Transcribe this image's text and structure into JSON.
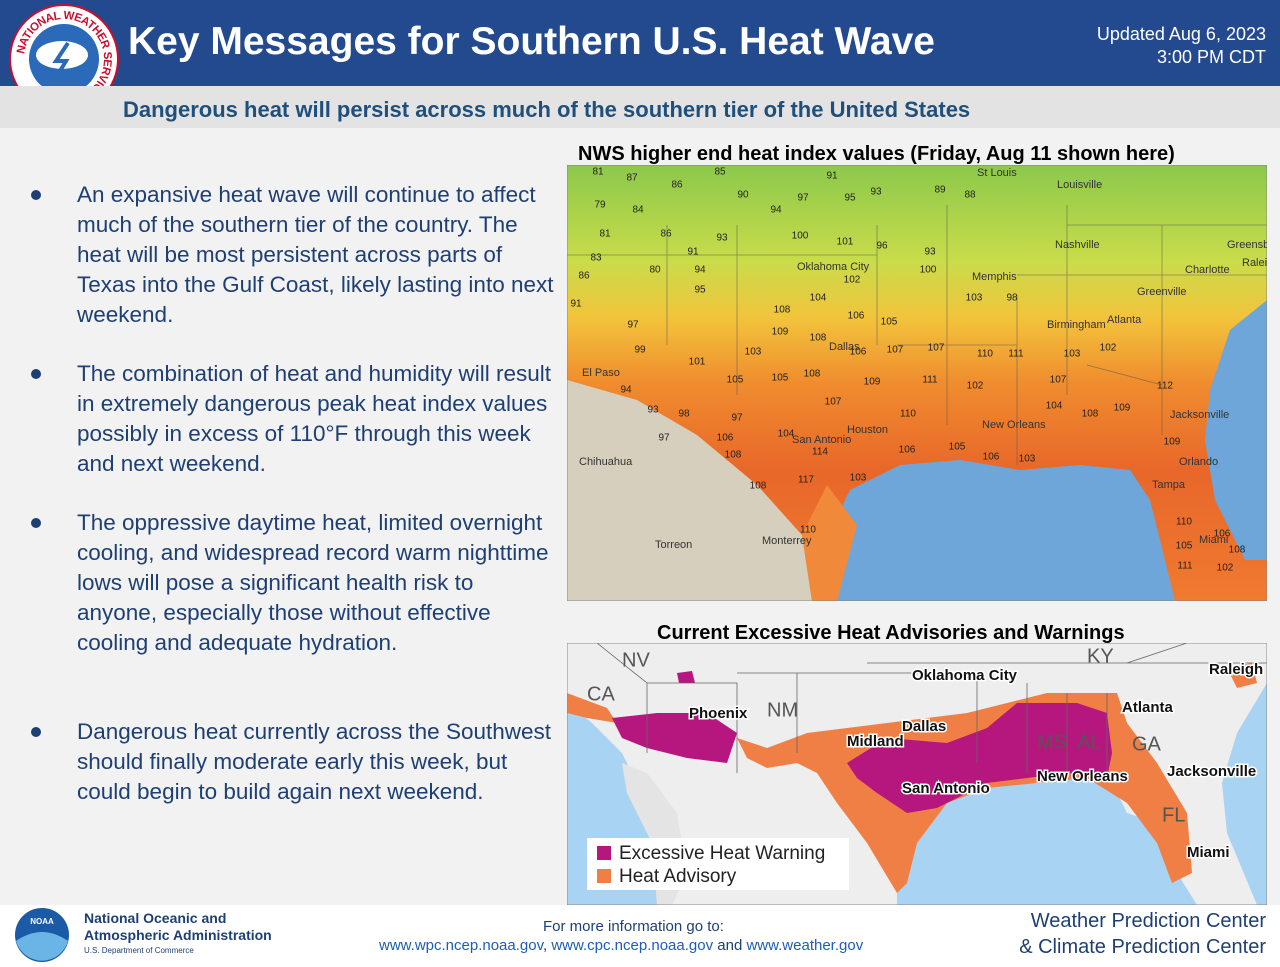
{
  "header": {
    "title": "Key Messages for Southern U.S. Heat Wave",
    "updated_line1": "Updated Aug 6, 2023",
    "updated_line2": "3:00 PM CDT",
    "logo_text": "NATIONAL WEATHER SERVICE"
  },
  "subtitle": "Dangerous heat will persist across much of the southern tier of the United States",
  "bullets": [
    "An expansive heat wave will continue to affect much of the southern tier of the country. The heat will be most persistent across parts of Texas into the Gulf Coast, likely lasting into next weekend.",
    "The combination of heat and humidity will result in extremely dangerous peak heat index values possibly in excess of 110°F through this week and next weekend.",
    "The oppressive daytime heat, limited overnight cooling, and widespread record warm nighttime lows will pose a significant health risk to anyone, especially those without effective cooling and adequate hydration.",
    "Dangerous heat currently across the Southwest should finally moderate early this week, but could begin to build again next weekend."
  ],
  "map1": {
    "title": "NWS higher end heat index values (Friday, Aug 11 shown here)",
    "cities": [
      "St Louis",
      "Louisville",
      "Nashville",
      "Oklahoma City",
      "Memphis",
      "Greenville",
      "Charlotte",
      "Greensboro",
      "Raleigh",
      "Dallas",
      "Birmingham",
      "Atlanta",
      "El Paso",
      "Houston",
      "San Antonio",
      "New Orleans",
      "Jacksonville",
      "Orlando",
      "Tampa",
      "Miami",
      "Chihuahua",
      "Torreon",
      "Monterrey"
    ],
    "values": [
      81,
      87,
      86,
      85,
      90,
      94,
      97,
      91,
      95,
      93,
      89,
      88,
      79,
      84,
      81,
      86,
      93,
      100,
      101,
      96,
      93,
      83,
      91,
      94,
      102,
      100,
      86,
      80,
      95,
      104,
      108,
      106,
      105,
      103,
      98,
      91,
      97,
      109,
      108,
      107,
      107,
      110,
      111,
      99,
      103,
      106,
      103,
      102,
      101,
      105,
      105,
      108,
      109,
      111,
      102,
      107,
      112,
      94,
      93,
      98,
      97,
      107,
      110,
      104,
      108,
      109,
      97,
      106,
      104,
      109,
      108,
      114,
      106,
      105,
      106,
      103,
      108,
      117,
      103,
      110,
      110,
      105,
      111,
      102,
      108,
      106
    ]
  },
  "map2": {
    "title": "Current Excessive Heat Advisories and Warnings",
    "labels": [
      "NV",
      "CA",
      "NM",
      "KY",
      "Oklahoma City",
      "Raleigh",
      "Phoenix",
      "Dallas",
      "Midland",
      "Atlanta",
      "MS",
      "AL",
      "GA",
      "New Orleans",
      "Jacksonville",
      "San Antonio",
      "FL",
      "Miami"
    ],
    "legend": [
      {
        "name": "Excessive Heat Warning",
        "color": "#b5177f"
      },
      {
        "name": "Heat Advisory",
        "color": "#f07f45"
      }
    ]
  },
  "footer": {
    "noaa_line1": "National Oceanic and",
    "noaa_line2": "Atmospheric Administration",
    "noaa_dept": "U.S. Department of Commerce",
    "logo": "NOAA",
    "info_label": "For more information go to:",
    "link1": "www.wpc.ncep.noaa.gov",
    "sep": ",",
    "link2": "www.cpc.ncep.noaa.gov",
    "and_text": "and",
    "link3": "www.weather.gov",
    "center_line1": "Weather Prediction Center",
    "center_line2": "& Climate Prediction Center"
  }
}
